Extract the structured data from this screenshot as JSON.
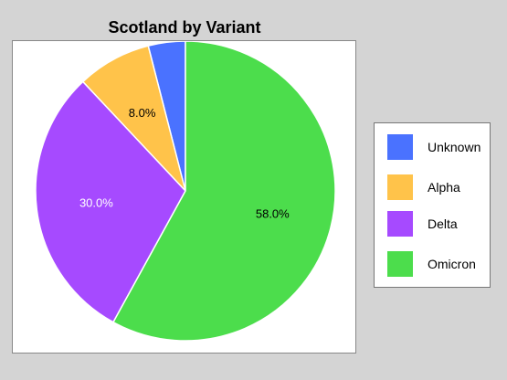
{
  "chart_data": {
    "type": "pie",
    "title": "Scotland by Variant",
    "categories": [
      "Unknown",
      "Alpha",
      "Delta",
      "Omicron"
    ],
    "values": [
      4.0,
      8.0,
      30.0,
      58.0
    ],
    "labels": [
      "",
      "8.0%",
      "30.0%",
      "58.0%"
    ],
    "colors": [
      "#4a72ff",
      "#ffc34a",
      "#a64aff",
      "#4cdd4c"
    ],
    "label_colors": [
      "#000000",
      "#000000",
      "#ffffff",
      "#000000"
    ],
    "legend_position": "right"
  }
}
